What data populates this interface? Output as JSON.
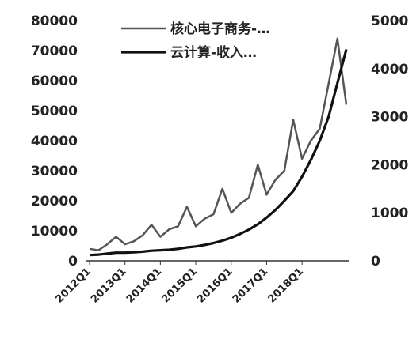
{
  "chart_data": {
    "type": "line",
    "title": "",
    "x": [
      "2012Q1",
      "2012Q2",
      "2012Q3",
      "2012Q4",
      "2013Q1",
      "2013Q2",
      "2013Q3",
      "2013Q4",
      "2014Q1",
      "2014Q2",
      "2014Q3",
      "2014Q4",
      "2015Q1",
      "2015Q2",
      "2015Q3",
      "2015Q4",
      "2016Q1",
      "2016Q2",
      "2016Q3",
      "2016Q4",
      "2017Q1",
      "2017Q2",
      "2017Q3",
      "2017Q4",
      "2018Q1",
      "2018Q2",
      "2018Q3",
      "2018Q4",
      "2019Q1",
      "2019Q2"
    ],
    "x_tick_labels": [
      "2012Q1",
      "2013Q1",
      "2014Q1",
      "2015Q1",
      "2016Q1",
      "2017Q1",
      "2018Q1"
    ],
    "left_axis": {
      "ylim": [
        0,
        80000
      ],
      "ticks": [
        "0",
        "10000",
        "20000",
        "30000",
        "40000",
        "50000",
        "60000",
        "70000",
        "80000"
      ]
    },
    "right_axis": {
      "ylim": [
        0,
        5000
      ],
      "ticks": [
        "0",
        "1000",
        "2000",
        "3000",
        "4000",
        "5000"
      ]
    },
    "grid": false,
    "legend_position": "top",
    "series": [
      {
        "name": "核心电子商务-…",
        "axis": "left",
        "color": "#555555",
        "values": [
          4000,
          3500,
          5500,
          8000,
          5500,
          6500,
          8500,
          12000,
          8000,
          10500,
          11500,
          18000,
          11500,
          14000,
          15500,
          24000,
          16000,
          19000,
          21000,
          32000,
          22000,
          27000,
          30000,
          47000,
          34000,
          40000,
          44000,
          59000,
          74000,
          52000
        ]
      },
      {
        "name": "云计算-收入…",
        "axis": "right",
        "color": "#111111",
        "values": [
          120,
          130,
          150,
          170,
          170,
          180,
          190,
          210,
          220,
          230,
          250,
          280,
          300,
          330,
          370,
          420,
          480,
          560,
          650,
          760,
          900,
          1060,
          1250,
          1450,
          1750,
          2100,
          2500,
          3000,
          3700,
          4400
        ]
      }
    ]
  }
}
